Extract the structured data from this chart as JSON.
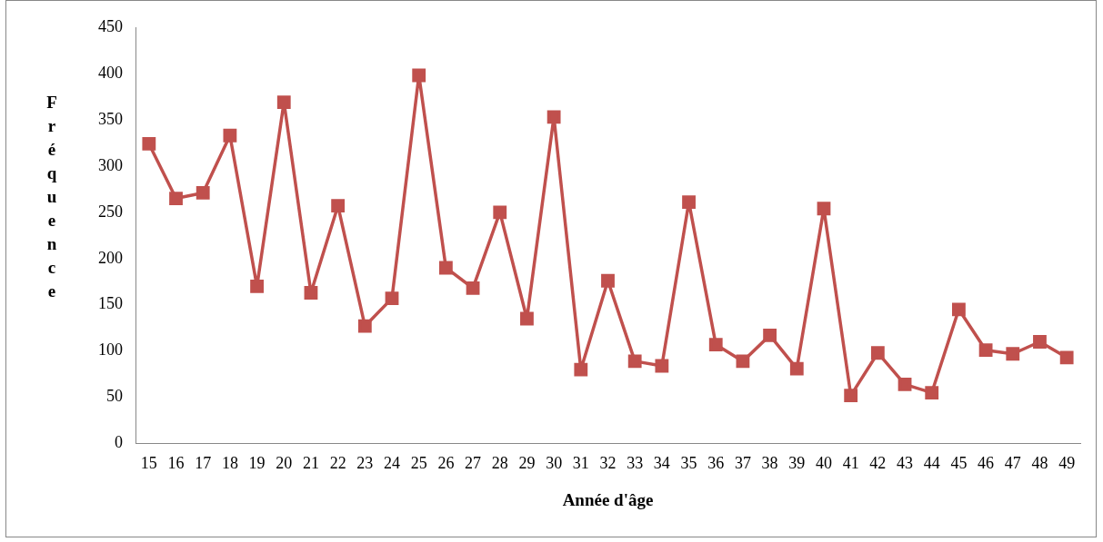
{
  "chart_data": {
    "type": "line",
    "xlabel": "Année d'âge",
    "ylabel": "Fréquence",
    "categories": [
      "15",
      "16",
      "17",
      "18",
      "19",
      "20",
      "21",
      "22",
      "23",
      "24",
      "25",
      "26",
      "27",
      "28",
      "29",
      "30",
      "31",
      "32",
      "33",
      "34",
      "35",
      "36",
      "37",
      "38",
      "39",
      "40",
      "41",
      "42",
      "43",
      "44",
      "45",
      "46",
      "47",
      "48",
      "49"
    ],
    "series": [
      {
        "color": "#c0504d",
        "values": [
          324,
          265,
          271,
          333,
          170,
          369,
          163,
          257,
          127,
          157,
          398,
          190,
          168,
          250,
          135,
          353,
          80,
          176,
          89,
          84,
          261,
          107,
          89,
          117,
          81,
          254,
          52,
          98,
          64,
          55,
          145,
          101,
          97,
          110,
          93
        ]
      }
    ],
    "ylim": [
      0,
      450
    ],
    "yticks": [
      0,
      50,
      100,
      150,
      200,
      250,
      300,
      350,
      400,
      450
    ],
    "grid": false,
    "legend": false,
    "marker": "square",
    "line_style": "solid"
  }
}
